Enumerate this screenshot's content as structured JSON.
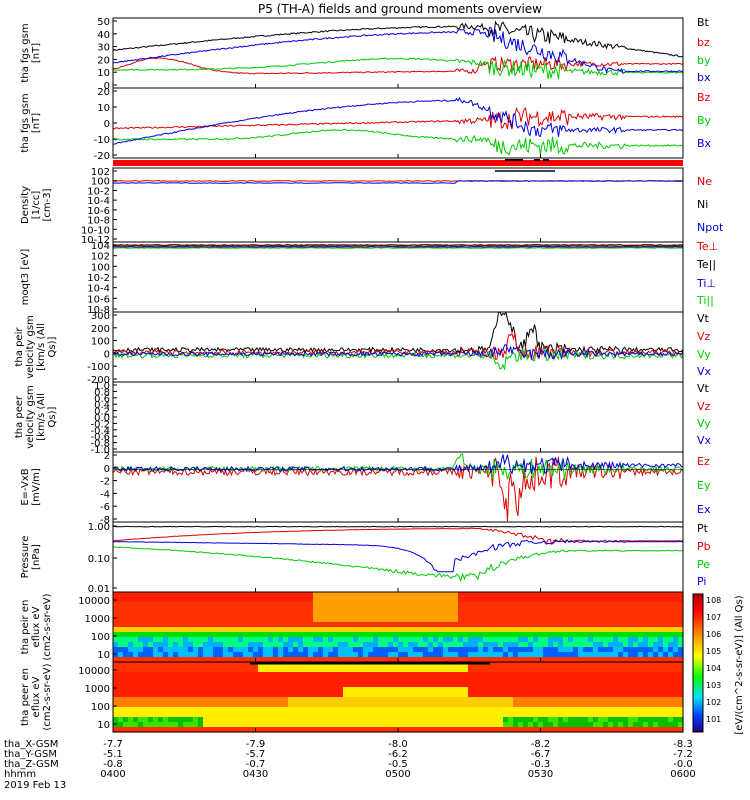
{
  "title": "P5 (TH-A) fields and ground moments overview",
  "footer": {
    "rows": [
      {
        "label": "tha_X-GSM",
        "values": [
          "-7.7",
          "-7.9",
          "-8.0",
          "-8.2",
          "-8.3"
        ]
      },
      {
        "label": "tha_Y-GSM",
        "values": [
          "-5.1",
          "-5.7",
          "-6.2",
          "-6.7",
          "-7.2"
        ]
      },
      {
        "label": "tha_Z-GSM",
        "values": [
          "-0.8",
          "-0.7",
          "-0.5",
          "-0.3",
          "-0.0"
        ]
      },
      {
        "label": "hhmm",
        "values": [
          "0400",
          "0430",
          "0500",
          "0530",
          "0600"
        ]
      }
    ],
    "date": "2019 Feb 13"
  },
  "colors": {
    "black": "#000000",
    "red": "#dd0000",
    "green": "#00cc00",
    "blue": "#0000dd",
    "flag": "#ff0000"
  },
  "colorbar": {
    "title": "[eV/(cm^2-s-sr-eV)] (All Qs)",
    "ticks": [
      "10^8",
      "10^7",
      "10^6",
      "10^5",
      "10^4",
      "10^3",
      "10^2",
      "10^1"
    ]
  },
  "chart_data": [
    {
      "type": "line",
      "panel": "fgs-gsm",
      "ylabel": "tha fgs gsm [nT]",
      "ylim": [
        0,
        50
      ],
      "yticks": [
        "50",
        "40",
        "30",
        "20",
        "10",
        "0"
      ],
      "series": [
        {
          "name": "Bt",
          "color": "black"
        },
        {
          "name": "bz",
          "color": "red"
        },
        {
          "name": "by",
          "color": "green"
        },
        {
          "name": "bx",
          "color": "blue"
        }
      ]
    },
    {
      "type": "line",
      "panel": "fgs-dsl",
      "ylabel": "tha fgs gsm [nT]",
      "ylim": [
        -25,
        20
      ],
      "yticks": [
        "20",
        "10",
        "0",
        "-10",
        "-20"
      ],
      "series": [
        {
          "name": "Bz",
          "color": "red"
        },
        {
          "name": "By",
          "color": "green"
        },
        {
          "name": "Bx",
          "color": "blue"
        }
      ]
    },
    {
      "type": "line",
      "panel": "density",
      "ylabel": "Density [1/cc] [cm-3]",
      "yticks": [
        "10^2",
        "10^0",
        "10^-2",
        "10^-4",
        "10^-6",
        "10^-8",
        "10^-10",
        "10^-12"
      ],
      "series": [
        {
          "name": "Ne",
          "color": "red"
        },
        {
          "name": "Ni",
          "color": "black"
        },
        {
          "name": "Npot",
          "color": "blue"
        }
      ]
    },
    {
      "type": "line",
      "panel": "temperature",
      "ylabel": "moqt3 [eV]",
      "yticks": [
        "10^4",
        "10^2",
        "10^0",
        "10^-2",
        "10^-4",
        "10^-6",
        "10^-8"
      ],
      "series": [
        {
          "name": "Te⊥",
          "color": "red"
        },
        {
          "name": "Te||",
          "color": "black"
        },
        {
          "name": "Ti⊥",
          "color": "blue"
        },
        {
          "name": "Ti||",
          "color": "green"
        }
      ]
    },
    {
      "type": "line",
      "panel": "peir-velocity",
      "ylabel": "tha peir velocity gsm [km/s (All Qs)]",
      "ylim": [
        -200,
        300
      ],
      "yticks": [
        "300",
        "200",
        "100",
        "0",
        "-100",
        "-200"
      ],
      "series": [
        {
          "name": "Vt",
          "color": "black"
        },
        {
          "name": "Vz",
          "color": "red"
        },
        {
          "name": "Vy",
          "color": "green"
        },
        {
          "name": "Vx",
          "color": "blue"
        }
      ]
    },
    {
      "type": "line",
      "panel": "peer-velocity",
      "ylabel": "tha peer velocity gsm [km/s (All Qs)]",
      "ylim": [
        -1,
        1
      ],
      "yticks": [
        "1.0",
        "0.8",
        "0.6",
        "0.4",
        "0.2",
        "0.0",
        "-0.2",
        "-0.4",
        "-0.6",
        "-0.8",
        "-1.0"
      ],
      "series": [
        {
          "name": "Vt",
          "color": "black"
        },
        {
          "name": "Vz",
          "color": "red"
        },
        {
          "name": "Vy",
          "color": "green"
        },
        {
          "name": "Vx",
          "color": "blue"
        }
      ]
    },
    {
      "type": "line",
      "panel": "e-field",
      "ylabel": "E=-VxB [mV/m]",
      "ylim": [
        -9,
        3
      ],
      "yticks": [
        "2",
        "0",
        "-2",
        "-4",
        "-6",
        "-8"
      ],
      "series": [
        {
          "name": "Ez",
          "color": "red"
        },
        {
          "name": "Ey",
          "color": "green"
        },
        {
          "name": "Ex",
          "color": "blue"
        }
      ]
    },
    {
      "type": "line",
      "panel": "pressure",
      "ylabel": "Pressure [nPa]",
      "yticks": [
        "1.00",
        "0.10",
        "0.01"
      ],
      "series": [
        {
          "name": "Pt",
          "color": "black"
        },
        {
          "name": "Pb",
          "color": "red"
        },
        {
          "name": "Pe",
          "color": "green"
        },
        {
          "name": "Pi",
          "color": "blue"
        }
      ]
    },
    {
      "type": "heatmap",
      "panel": "peir-spectrogram",
      "ylabel": "tha peir en eflux eV (cm2-s-sr-eV)",
      "yticks": [
        "10000",
        "1000",
        "100",
        "10"
      ]
    },
    {
      "type": "heatmap",
      "panel": "peer-spectrogram",
      "ylabel": "tha peer en eflux eV (cm2-s-sr-eV)",
      "yticks": [
        "10000",
        "1000",
        "100",
        "10"
      ]
    }
  ]
}
